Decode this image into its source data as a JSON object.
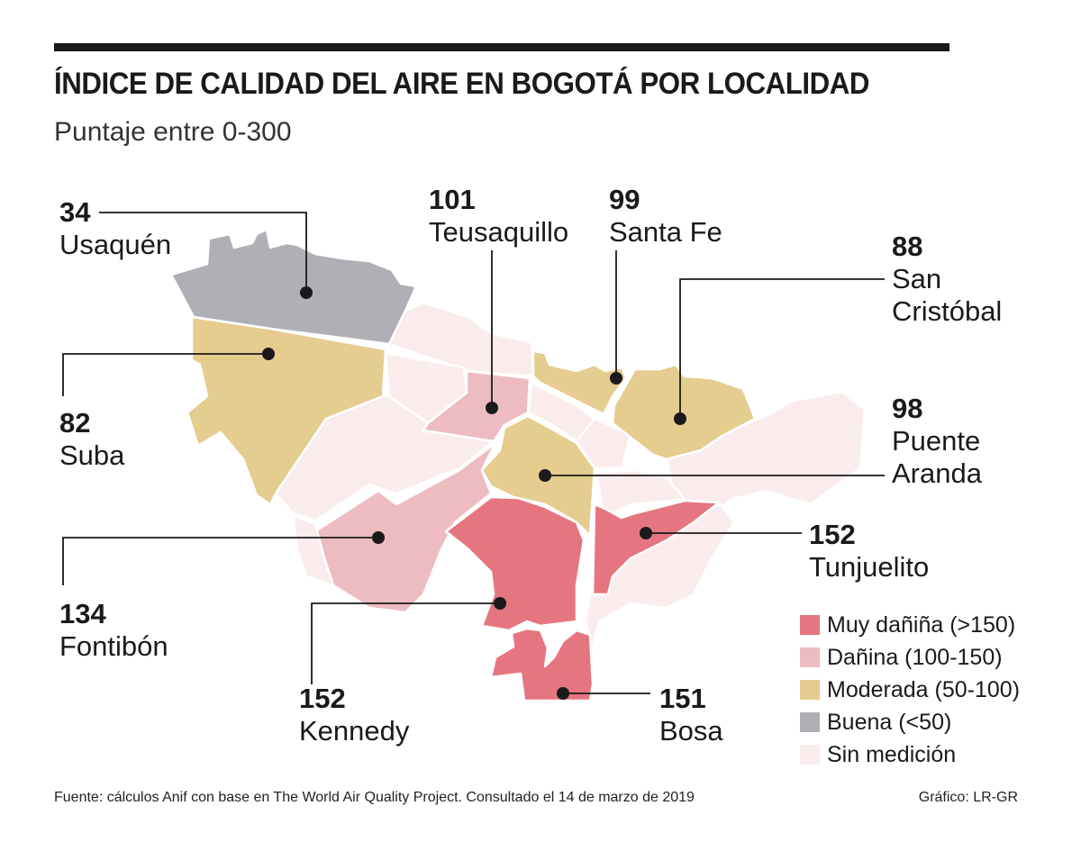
{
  "title": "ÍNDICE DE CALIDAD DEL AIRE EN BOGOTÁ POR LOCALIDAD",
  "subtitle": "Puntaje entre 0-300",
  "colors": {
    "muy_danina": "#e57680",
    "danina": "#edbcc0",
    "moderada": "#e5cc8f",
    "buena": "#b0afb6",
    "sin_medicion": "#faeced",
    "border": "#ffffff",
    "leader": "#1a1a1a"
  },
  "localidades": [
    {
      "value": "34",
      "name": "Usaquén",
      "category": "buena"
    },
    {
      "value": "101",
      "name": "Teusaquillo",
      "category": "danina"
    },
    {
      "value": "99",
      "name": "Santa Fe",
      "category": "moderada"
    },
    {
      "value": "88",
      "name": "San Cristóbal",
      "category": "moderada"
    },
    {
      "value": "82",
      "name": "Suba",
      "category": "moderada"
    },
    {
      "value": "98",
      "name": "Puente Aranda",
      "category": "moderada"
    },
    {
      "value": "152",
      "name": "Tunjuelito",
      "category": "muy_danina"
    },
    {
      "value": "134",
      "name": "Fontibón",
      "category": "danina"
    },
    {
      "value": "152",
      "name": "Kennedy",
      "category": "muy_danina"
    },
    {
      "value": "151",
      "name": "Bosa",
      "category": "muy_danina"
    }
  ],
  "labels": {
    "usaquen": {
      "value": "34",
      "name": "Usaquén"
    },
    "teusaquillo": {
      "value": "101",
      "name": "Teusaquillo"
    },
    "santa_fe": {
      "value": "99",
      "name": "Santa Fe"
    },
    "san_cristobal": {
      "value": "88",
      "name1": "San",
      "name2": "Cristóbal"
    },
    "suba": {
      "value": "82",
      "name": "Suba"
    },
    "puente_aranda": {
      "value": "98",
      "name1": "Puente",
      "name2": "Aranda"
    },
    "tunjuelito": {
      "value": "152",
      "name": "Tunjuelito"
    },
    "fontibon": {
      "value": "134",
      "name": "Fontibón"
    },
    "kennedy": {
      "value": "152",
      "name": "Kennedy"
    },
    "bosa": {
      "value": "151",
      "name": "Bosa"
    }
  },
  "legend": [
    {
      "label": "Muy dañiña (>150)",
      "color": "#e57680"
    },
    {
      "label": "Dañina (100-150)",
      "color": "#edbcc0"
    },
    {
      "label": "Moderada (50-100)",
      "color": "#e5cc8f"
    },
    {
      "label": "Buena (<50)",
      "color": "#b0afb6"
    },
    {
      "label": "Sin medición",
      "color": "#faeced"
    }
  ],
  "source": "Fuente: cálculos Anif con base en The World Air Quality Project. Consultado el 14 de marzo de 2019",
  "credit": "Gráfico: LR-GR"
}
